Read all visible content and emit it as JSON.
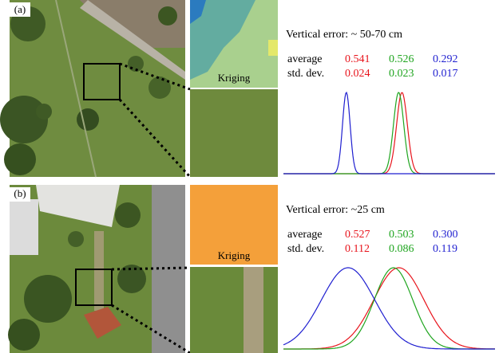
{
  "panels": [
    {
      "label": "(a)",
      "kriging_label": "Kriging",
      "vertical_error": "Vertical error: ~ 50-70 cm",
      "row_labels": [
        "average",
        "std. dev."
      ],
      "series": [
        {
          "color": "#e8141c",
          "average": "0.541",
          "std_dev": "0.024"
        },
        {
          "color": "#1fa51f",
          "average": "0.526",
          "std_dev": "0.023"
        },
        {
          "color": "#1f1fd0",
          "average": "0.292",
          "std_dev": "0.017"
        }
      ]
    },
    {
      "label": "(b)",
      "kriging_label": "Kriging",
      "vertical_error": "Vertical error: ~25 cm",
      "row_labels": [
        "average",
        "std. dev."
      ],
      "series": [
        {
          "color": "#e8141c",
          "average": "0.527",
          "std_dev": "0.112"
        },
        {
          "color": "#1fa51f",
          "average": "0.503",
          "std_dev": "0.086"
        },
        {
          "color": "#1f1fd0",
          "average": "0.300",
          "std_dev": "0.119"
        }
      ]
    }
  ]
}
